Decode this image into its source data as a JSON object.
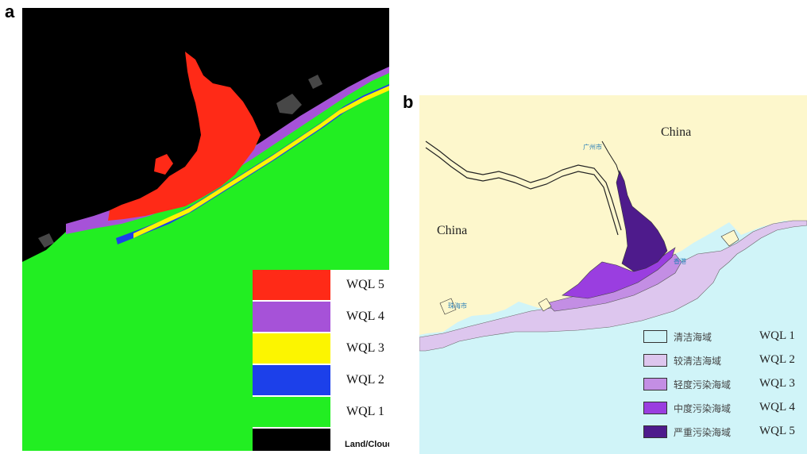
{
  "panel_a": {
    "letter": "a",
    "legend": [
      {
        "label": "WQL 5",
        "color": "#ff2a17"
      },
      {
        "label": "WQL 4",
        "color": "#a652d8"
      },
      {
        "label": "WQL 3",
        "color": "#fcf500"
      },
      {
        "label": "WQL 2",
        "color": "#1c40ea"
      },
      {
        "label": "WQL 1",
        "color": "#22ee22"
      },
      {
        "label": "Land/Clouds",
        "color": "#000000"
      }
    ]
  },
  "panel_b": {
    "letter": "b",
    "region_labels": [
      "China",
      "China"
    ],
    "place_labels": [
      "广州市",
      "香港",
      "珠海市"
    ],
    "legend": [
      {
        "cn": "清洁海域",
        "label": "WQL 1",
        "color": "#cdf3f7"
      },
      {
        "cn": "较清洁海域",
        "label": "WQL 2",
        "color": "#ddc6ee"
      },
      {
        "cn": "轻度污染海域",
        "label": "WQL 3",
        "color": "#c38ee4"
      },
      {
        "cn": "中度污染海域",
        "label": "WQL 4",
        "color": "#9a3ee0"
      },
      {
        "cn": "严重污染海域",
        "label": "WQL 5",
        "color": "#4e1b8c"
      }
    ],
    "colors": {
      "land": "#fdf7cc",
      "sea": "#d0f4f8"
    }
  }
}
